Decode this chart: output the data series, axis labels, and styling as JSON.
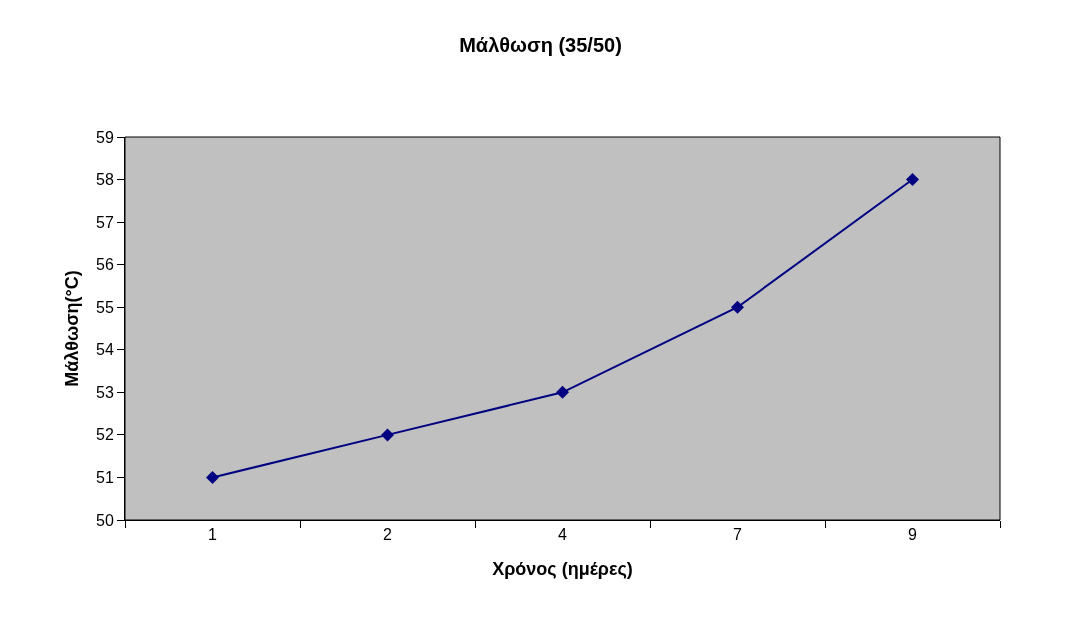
{
  "chart_data": {
    "type": "line",
    "title": "Μάλθωση (35/50)",
    "xlabel": "Χρόνος (ημέρες)",
    "ylabel": "Μάλθωση(°C)",
    "categories": [
      "1",
      "2",
      "4",
      "7",
      "9"
    ],
    "series": [
      {
        "color": "#000080",
        "values": [
          51,
          52,
          53,
          55,
          58
        ]
      }
    ],
    "ylim": [
      50,
      59
    ],
    "yticks": [
      50,
      51,
      52,
      53,
      54,
      55,
      56,
      57,
      58,
      59
    ],
    "marker": "diamond",
    "line_style": "solid",
    "grid": false
  }
}
